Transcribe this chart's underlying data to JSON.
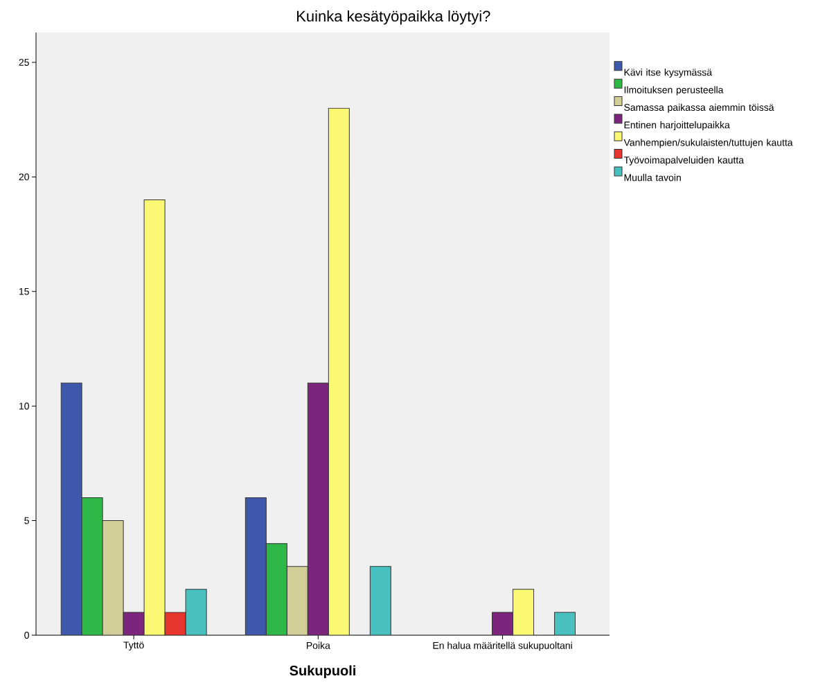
{
  "chart_data": {
    "type": "bar",
    "title": "Kuinka kesätyöpaikka löytyi?",
    "xlabel": "Sukupuoli",
    "categories": [
      "Tyttö",
      "Poika",
      "En halua määritellä sukupuoltani"
    ],
    "series": [
      {
        "name": "Kävi itse kysymässä",
        "color": "#3e58ac",
        "values": [
          11,
          6,
          null
        ]
      },
      {
        "name": "Ilmoituksen perusteella",
        "color": "#2eb848",
        "values": [
          6,
          4,
          null
        ]
      },
      {
        "name": "Samassa paikassa aiemmin töissä",
        "color": "#d3ce97",
        "values": [
          5,
          3,
          null
        ]
      },
      {
        "name": "Entinen harjoittelupaikka",
        "color": "#7b267c",
        "values": [
          1,
          11,
          1
        ]
      },
      {
        "name": "Vanhempien/sukulaisten/tuttujen kautta",
        "color": "#fbf873",
        "values": [
          19,
          23,
          2
        ]
      },
      {
        "name": "Työvoimapalveluiden kautta",
        "color": "#e8352d",
        "values": [
          1,
          null,
          null
        ]
      },
      {
        "name": "Muulla tavoin",
        "color": "#48c0c0",
        "values": [
          2,
          3,
          1
        ]
      }
    ],
    "ylim": [
      0,
      26.3
    ],
    "yticks": [
      0,
      5,
      10,
      15,
      20,
      25
    ],
    "legend": "right"
  }
}
